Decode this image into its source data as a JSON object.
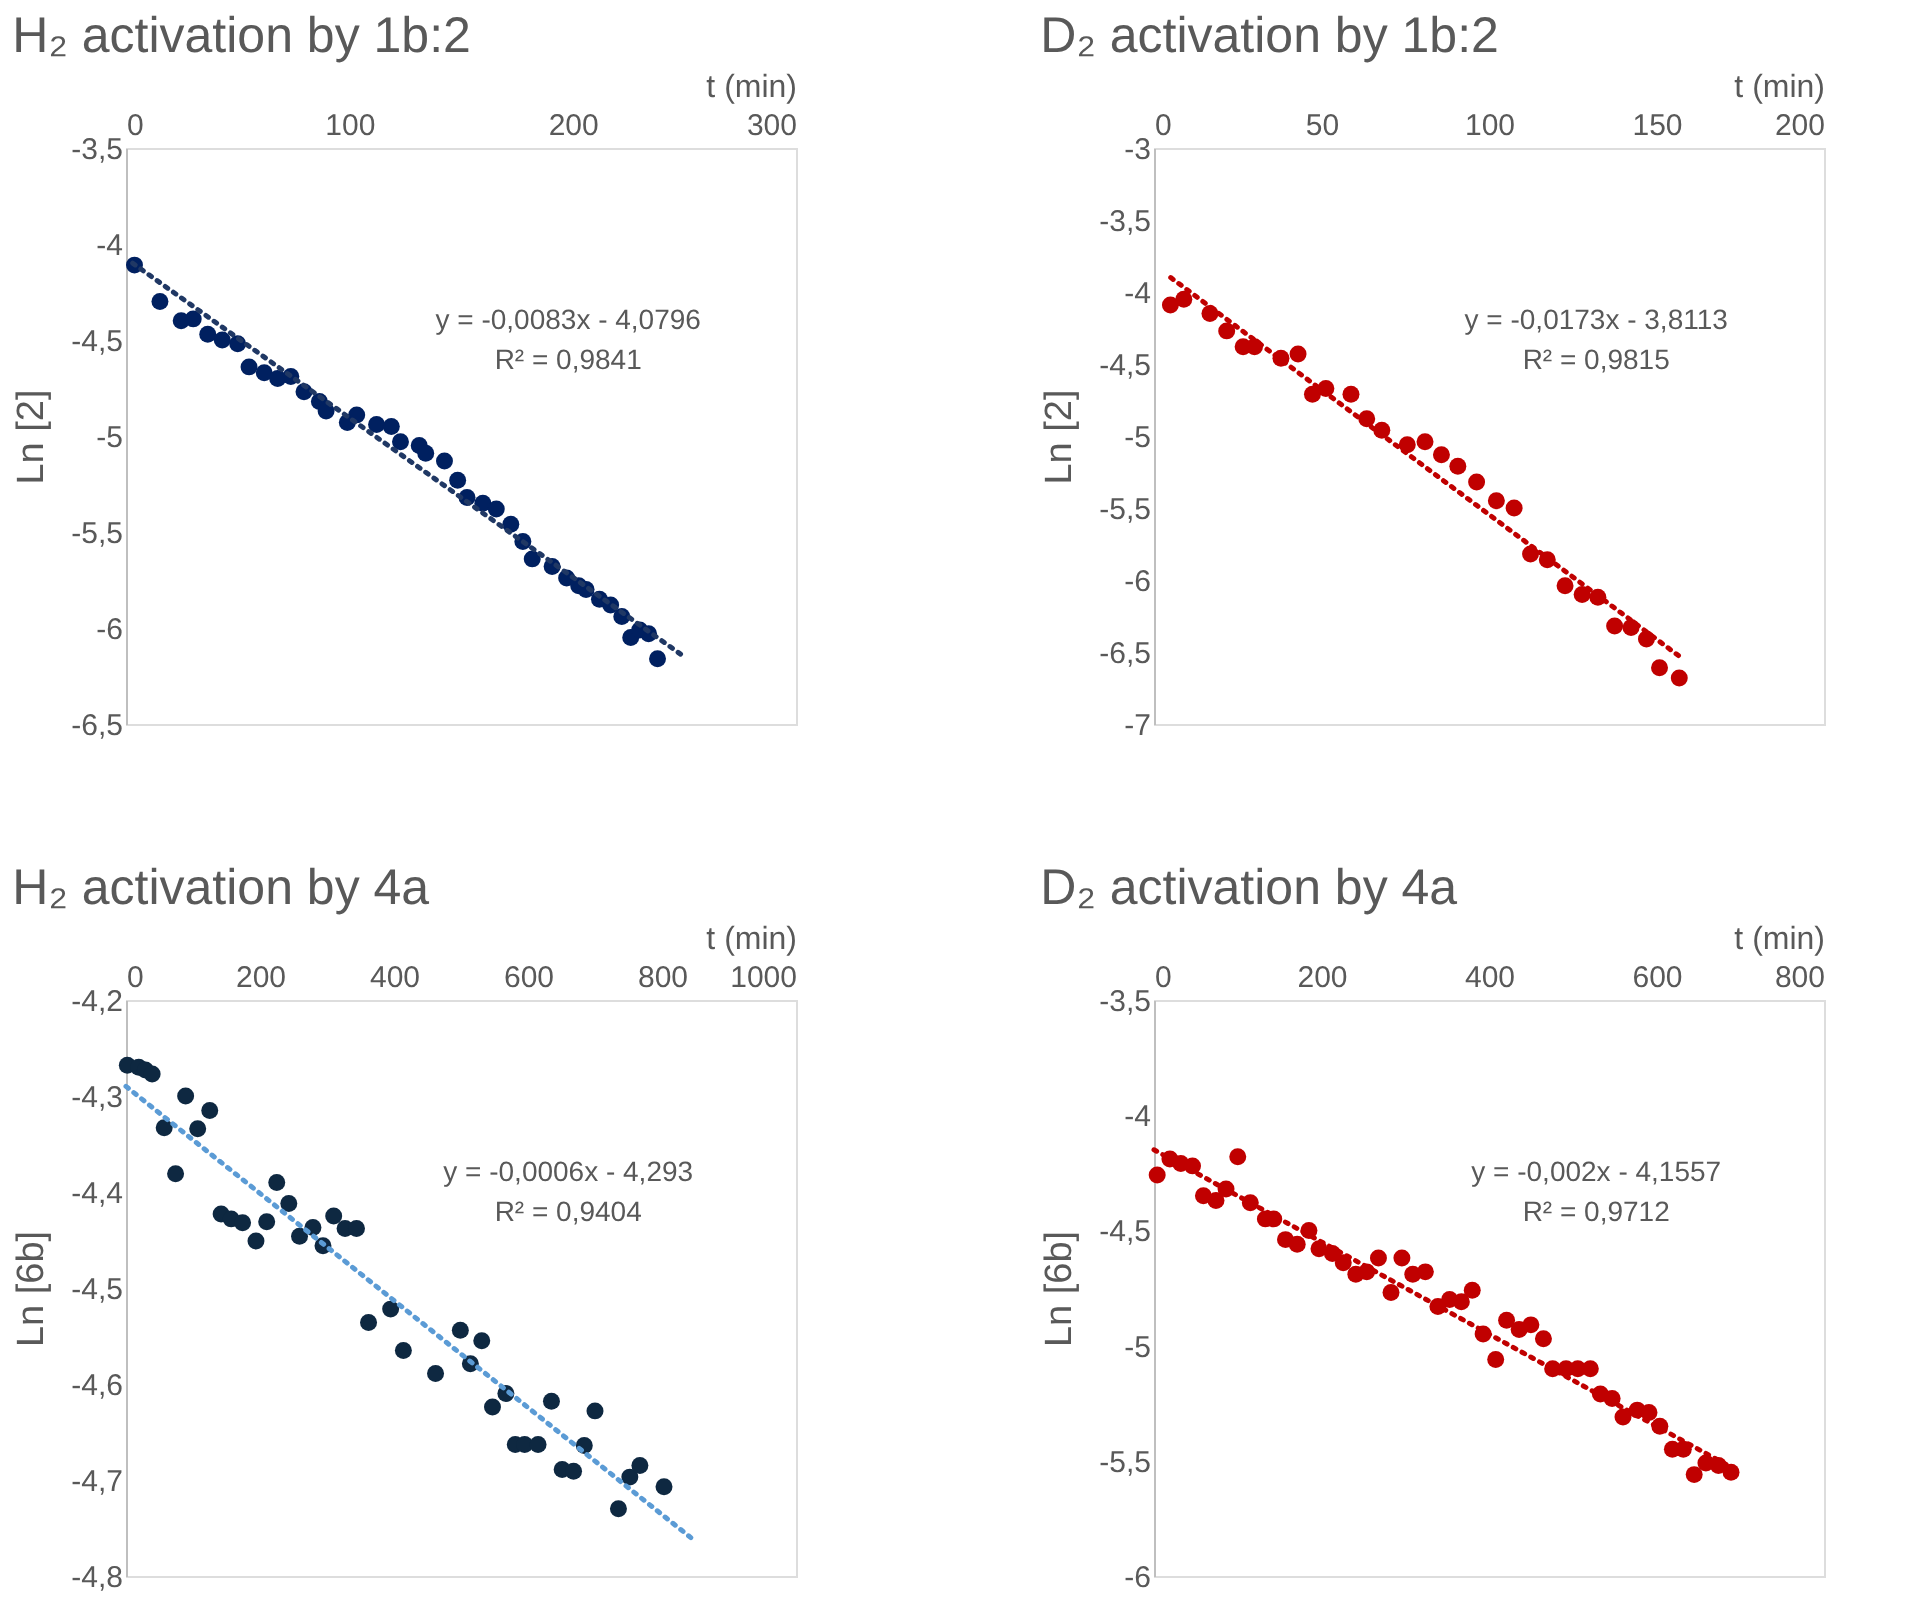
{
  "chart_data": [
    {
      "type": "scatter",
      "title": "H₂ activation by 1b:2",
      "xlabel": "t (min)",
      "ylabel": "Ln [2]",
      "xlim": [
        0,
        300
      ],
      "xticks": [
        0,
        100,
        200,
        300
      ],
      "ylim": [
        -6.5,
        -3.5
      ],
      "yticks": [
        {
          "value": -3.5,
          "label": "-3,5"
        },
        -4,
        {
          "value": -4.5,
          "label": "-4,5"
        },
        -5,
        {
          "value": -5.5,
          "label": "-5,5"
        },
        -6,
        {
          "value": -6.5,
          "label": "-6,5"
        }
      ],
      "annotations": [
        "y = -0,0083x - 4,0796",
        "R² = 0,9841"
      ],
      "series": [
        {
          "marker": "circle",
          "color": "#002060",
          "x": [
            3.8,
            15.2,
            24.7,
            30.1,
            36.6,
            43.1,
            50,
            55.1,
            61.9,
            67.9,
            73.8,
            79.7,
            86.6,
            89.6,
            99.1,
            103.3,
            112.2,
            118.8,
            122.9,
            131.3,
            134.2,
            142.6,
            148.5,
            152.7,
            159.8,
            165.8,
            172.3,
            177.7,
            181.9,
            190.8,
            197.3,
            202.7,
            206,
            212,
            217,
            222,
            226,
            230,
            234,
            238
          ],
          "values": [
            -4.11,
            -4.3,
            -4.4,
            -4.39,
            -4.47,
            -4.5,
            -4.52,
            -4.64,
            -4.67,
            -4.7,
            -4.69,
            -4.77,
            -4.82,
            -4.87,
            -4.93,
            -4.89,
            -4.94,
            -4.95,
            -5.03,
            -5.05,
            -5.09,
            -5.13,
            -5.23,
            -5.32,
            -5.35,
            -5.38,
            -5.46,
            -5.55,
            -5.64,
            -5.68,
            -5.74,
            -5.78,
            -5.8,
            -5.85,
            -5.88,
            -5.94,
            -6.05,
            -6.01,
            -6.03,
            -6.16
          ]
        },
        {
          "type": "line",
          "color": "#203864",
          "line_style": "dotted",
          "x": [
            3,
            250
          ],
          "values": [
            -4.1,
            -6.15
          ]
        }
      ]
    },
    {
      "type": "scatter",
      "title": "D₂ activation by 1b:2",
      "xlabel": "t (min)",
      "ylabel": "Ln [2]",
      "xlim": [
        0,
        200
      ],
      "xticks": [
        0,
        50,
        100,
        150,
        200
      ],
      "ylim": [
        -7,
        -3
      ],
      "yticks": [
        -3,
        {
          "value": -3.5,
          "label": "-3,5"
        },
        -4,
        {
          "value": -4.5,
          "label": "-4,5"
        },
        -5,
        {
          "value": -5.5,
          "label": "-5,5"
        },
        -6,
        {
          "value": -6.5,
          "label": "-6,5"
        },
        -7
      ],
      "annotations": [
        "y = -0,0173x - 3,8113",
        "R² = 0,9815"
      ],
      "series": [
        {
          "marker": "circle",
          "color": "#c00000",
          "x": [
            4.9,
            8.9,
            16.7,
            21.7,
            26.6,
            30.0,
            37.9,
            43.0,
            47.3,
            51.3,
            58.8,
            63.5,
            68.0,
            75.6,
            80.9,
            85.8,
            90.7,
            96.3,
            102.2,
            107.5,
            112.4,
            117.4,
            122.7,
            127.8,
            132.5,
            137.5,
            142.4,
            147.0,
            150.9,
            156.8
          ],
          "values": [
            -4.09,
            -4.05,
            -4.15,
            -4.27,
            -4.38,
            -4.38,
            -4.46,
            -4.43,
            -4.71,
            -4.67,
            -4.71,
            -4.88,
            -4.96,
            -5.06,
            -5.04,
            -5.13,
            -5.21,
            -5.32,
            -5.45,
            -5.5,
            -5.82,
            -5.86,
            -6.04,
            -6.1,
            -6.12,
            -6.32,
            -6.33,
            -6.41,
            -6.61,
            -6.68
          ]
        },
        {
          "type": "line",
          "color": "#c00000",
          "line_style": "dotted",
          "x": [
            5,
            158
          ],
          "values": [
            -3.9,
            -6.55
          ]
        }
      ]
    },
    {
      "type": "scatter",
      "title": "H₂ activation by 4a",
      "xlabel": "t (min)",
      "ylabel": "Ln [6b]",
      "xlim": [
        0,
        1000
      ],
      "xticks": [
        0,
        200,
        400,
        600,
        800,
        1000
      ],
      "ylim": [
        -4.8,
        -4.2
      ],
      "yticks": [
        {
          "value": -4.2,
          "label": "-4,2"
        },
        {
          "value": -4.3,
          "label": "-4,3"
        },
        {
          "value": -4.4,
          "label": "-4,4"
        },
        {
          "value": -4.5,
          "label": "-4,5"
        },
        {
          "value": -4.6,
          "label": "-4,6"
        },
        {
          "value": -4.7,
          "label": "-4,7"
        },
        {
          "value": -4.8,
          "label": "-4,8"
        }
      ],
      "annotations": [
        "y = -0,0006x - 4,293",
        "R² = 0,9404"
      ],
      "series": [
        {
          "marker": "circle",
          "color": "#0e2841",
          "x": [
            2,
            19,
            29,
            39,
            57,
            74,
            89,
            107,
            125,
            142,
            157,
            174,
            194,
            210,
            225,
            243,
            259,
            279,
            294,
            310,
            327,
            344,
            362,
            395,
            414,
            462,
            499,
            514,
            531,
            547,
            567,
            581,
            595,
            615,
            635,
            651,
            668,
            684,
            700,
            735,
            752,
            767,
            803
          ],
          "values": [
            -4.268,
            -4.27,
            -4.273,
            -4.277,
            -4.333,
            -4.381,
            -4.3,
            -4.334,
            -4.315,
            -4.423,
            -4.428,
            -4.432,
            -4.451,
            -4.431,
            -4.39,
            -4.412,
            -4.446,
            -4.437,
            -4.456,
            -4.425,
            -4.438,
            -4.438,
            -4.536,
            -4.522,
            -4.565,
            -4.589,
            -4.544,
            -4.579,
            -4.555,
            -4.624,
            -4.61,
            -4.663,
            -4.663,
            -4.663,
            -4.618,
            -4.689,
            -4.691,
            -4.664,
            -4.628,
            -4.73,
            -4.697,
            -4.685,
            -4.707
          ]
        },
        {
          "type": "line",
          "color": "#5b9bd5",
          "line_style": "dotted",
          "x": [
            0,
            843
          ],
          "values": [
            -4.29,
            -4.76
          ]
        }
      ]
    },
    {
      "type": "scatter",
      "title": "D₂ activation by 4a",
      "xlabel": "t (min)",
      "ylabel": "Ln [6b]",
      "xlim": [
        0,
        800
      ],
      "xticks": [
        0,
        200,
        400,
        600,
        800
      ],
      "ylim": [
        -6,
        -3.5
      ],
      "yticks": [
        {
          "value": -3.5,
          "label": "-3,5"
        },
        -4,
        {
          "value": -4.5,
          "label": "-4,5"
        },
        -5,
        {
          "value": -5.5,
          "label": "-5,5"
        },
        -6
      ],
      "annotations": [
        "y = -0,002x - 4,1557",
        "R² = 0,9712"
      ],
      "series": [
        {
          "marker": "circle",
          "color": "#c00000",
          "x": [
            3.8,
            19,
            32,
            46,
            59,
            74,
            86,
            100,
            115,
            133,
            143,
            157,
            171,
            185,
            197,
            213,
            226,
            241,
            254,
            268,
            283,
            296,
            309,
            324,
            339,
            353,
            367,
            380,
            393,
            408,
            421,
            436,
            450,
            465,
            476,
            492,
            506,
            521,
            533,
            547,
            560,
            577,
            591,
            604,
            619,
            632,
            645,
            659,
            674,
            689
          ],
          "values": [
            -4.26,
            -4.19,
            -4.21,
            -4.22,
            -4.35,
            -4.37,
            -4.32,
            -4.18,
            -4.38,
            -4.45,
            -4.45,
            -4.54,
            -4.56,
            -4.5,
            -4.58,
            -4.6,
            -4.64,
            -4.69,
            -4.68,
            -4.62,
            -4.77,
            -4.62,
            -4.69,
            -4.68,
            -4.83,
            -4.8,
            -4.81,
            -4.76,
            -4.95,
            -5.06,
            -4.89,
            -4.93,
            -4.91,
            -4.97,
            -5.1,
            -5.1,
            -5.1,
            -5.1,
            -5.21,
            -5.23,
            -5.31,
            -5.28,
            -5.29,
            -5.35,
            -5.45,
            -5.45,
            -5.56,
            -5.51,
            -5.52,
            -5.55
          ]
        },
        {
          "type": "line",
          "color": "#c00000",
          "line_style": "dotted",
          "x": [
            0,
            690
          ],
          "values": [
            -4.15,
            -5.53
          ]
        }
      ]
    }
  ]
}
